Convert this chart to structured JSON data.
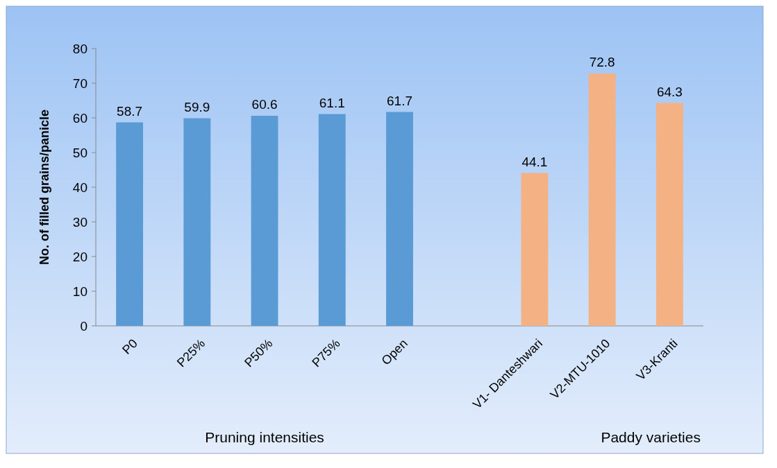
{
  "chart_data": {
    "type": "bar",
    "ylabel": "No. of filled grains/panicle",
    "categories": [
      "P0",
      "P25%",
      "P50%",
      "P75%",
      "Open",
      null,
      "V1- Danteshwari",
      "V2-MTU-1010",
      "V3-Kranti"
    ],
    "values": [
      58.7,
      59.9,
      60.6,
      61.1,
      61.7,
      null,
      44.1,
      72.8,
      64.3
    ],
    "colors": [
      "#5b9bd5",
      "#5b9bd5",
      "#5b9bd5",
      "#5b9bd5",
      "#5b9bd5",
      null,
      "#f4b183",
      "#f4b183",
      "#f4b183"
    ],
    "ylim": [
      0,
      80
    ],
    "yticks": [
      0,
      10,
      20,
      30,
      40,
      50,
      60,
      70,
      80
    ],
    "data_labels": true,
    "annotations": [
      "Pruning intensities",
      "Paddy varieties"
    ]
  }
}
